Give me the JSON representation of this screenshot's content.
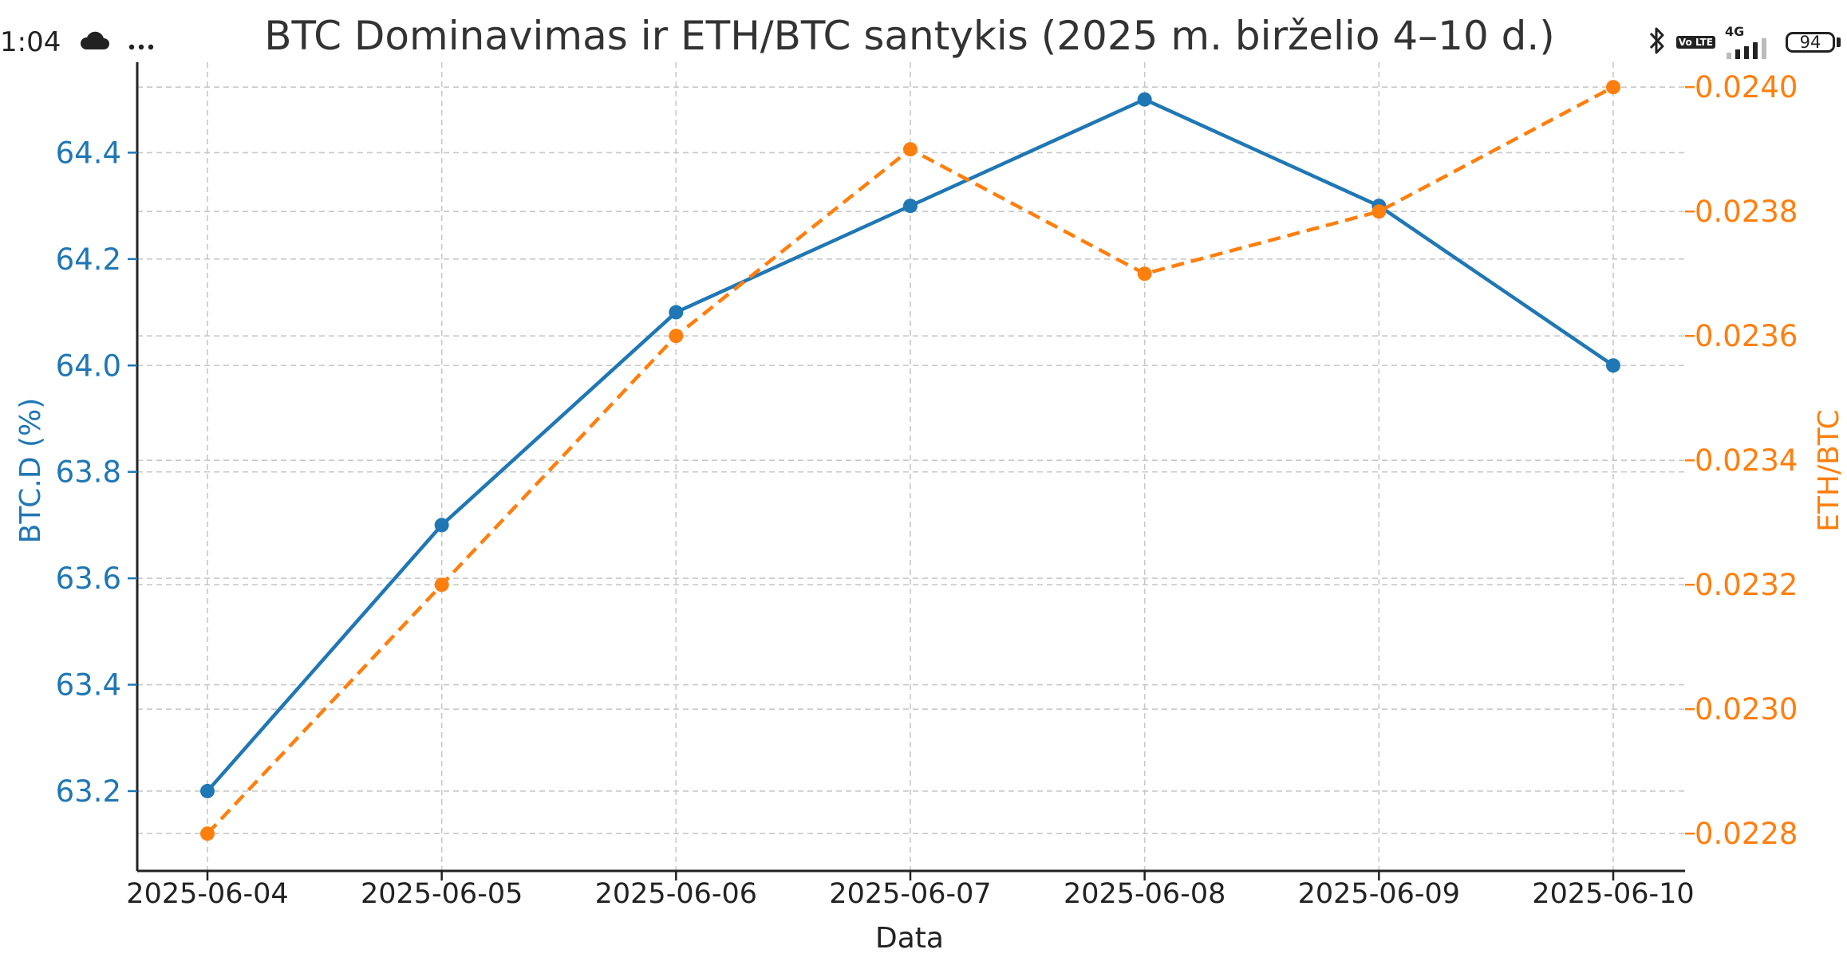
{
  "status_bar": {
    "time": "1:04",
    "left_icons": [
      "cloud-icon",
      "more-dots-icon"
    ],
    "network_label": "4G",
    "volte_label": "Vo LTE",
    "battery_level": "94",
    "right_icons": [
      "bluetooth-icon",
      "volte-icon",
      "signal-icon",
      "battery-icon"
    ]
  },
  "chart_data": {
    "type": "line",
    "title": "BTC Dominavimas ir ETH/BTC santykis (2025 m. birželio 4–10 d.)",
    "xlabel": "Data",
    "ylabel_left": "BTC.D (%)",
    "ylabel_right": "ETH/BTC",
    "categories": [
      "2025-06-04",
      "2025-06-05",
      "2025-06-06",
      "2025-06-07",
      "2025-06-08",
      "2025-06-09",
      "2025-06-10"
    ],
    "y_left": {
      "ticks": [
        "63.2",
        "63.4",
        "63.6",
        "63.8",
        "64.0",
        "64.2",
        "64.4"
      ],
      "ylim": [
        63.05,
        64.57
      ]
    },
    "y_right": {
      "ticks": [
        "0.0228",
        "0.0230",
        "0.0232",
        "0.0234",
        "0.0236",
        "0.0238",
        "0.0240"
      ],
      "ylim": [
        0.02274,
        0.02404
      ]
    },
    "series": [
      {
        "values": [
          63.2,
          63.7,
          64.1,
          64.3,
          64.5,
          64.3,
          64.0
        ],
        "axis": "left",
        "color": "#1f77b4",
        "style": "solid"
      },
      {
        "values": [
          0.0228,
          0.0232,
          0.0236,
          0.0239,
          0.0237,
          0.0238,
          0.024
        ],
        "axis": "right",
        "color": "#ff7f0e",
        "style": "dashed"
      }
    ],
    "grid": true
  }
}
